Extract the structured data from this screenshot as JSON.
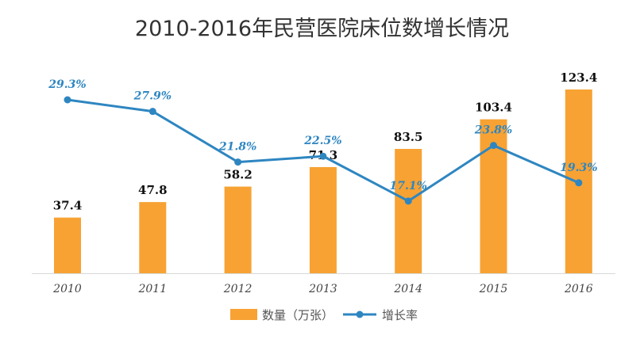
{
  "chart_data": {
    "type": "bar",
    "title": "2010-2016年民营医院床位数增长情况",
    "categories": [
      "2010",
      "2011",
      "2012",
      "2013",
      "2014",
      "2015",
      "2016"
    ],
    "series": [
      {
        "name": "数量（万张）",
        "type": "bar",
        "values": [
          37.4,
          47.8,
          58.2,
          71.3,
          83.5,
          103.4,
          123.4
        ],
        "labels": [
          "37.4",
          "47.8",
          "58.2",
          "71.3",
          "83.5",
          "103.4",
          "123.4"
        ],
        "color": "#F7A233"
      },
      {
        "name": "增长率",
        "type": "line",
        "values": [
          29.3,
          27.9,
          21.8,
          22.5,
          17.1,
          23.8,
          19.3
        ],
        "labels": [
          "29.3%",
          "27.9%",
          "21.8%",
          "22.5%",
          "17.1%",
          "23.8%",
          "19.3%"
        ],
        "color": "#2E86C1"
      }
    ],
    "ylim_bar": [
      0,
      135
    ],
    "ylim_line": [
      0,
      35
    ],
    "legend_position": "bottom",
    "grid": false
  }
}
